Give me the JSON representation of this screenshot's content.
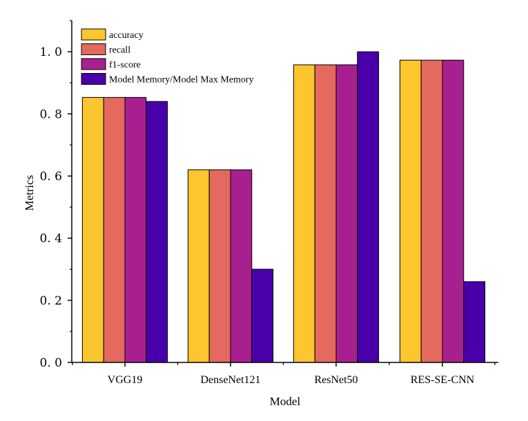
{
  "chart_data": {
    "type": "bar",
    "xlabel": "Model",
    "ylabel": "Metrics",
    "ylim": [
      0,
      1.1
    ],
    "y_ticks": [
      "0. 0",
      "0. 2",
      "0. 4",
      "0. 6",
      "0. 8",
      "1. 0"
    ],
    "y_tick_values": [
      0,
      0.2,
      0.4,
      0.6,
      0.8,
      1.0
    ],
    "categories": [
      "VGG19",
      "DenseNet121",
      "ResNet50",
      "RES-SE-CNN"
    ],
    "series": [
      {
        "name": "accuracy",
        "color": "#FDC52E",
        "values": [
          0.853,
          0.62,
          0.958,
          0.973
        ]
      },
      {
        "name": "recall",
        "color": "#E4695E",
        "values": [
          0.853,
          0.62,
          0.958,
          0.973
        ]
      },
      {
        "name": "f1-score",
        "color": "#A8208F",
        "values": [
          0.853,
          0.62,
          0.958,
          0.973
        ]
      },
      {
        "name": "Model Memory/Model Max Memory",
        "color": "#4A00A8",
        "values": [
          0.84,
          0.3,
          1.0,
          0.26
        ]
      }
    ],
    "legend_position": "top-left",
    "grid": false
  }
}
